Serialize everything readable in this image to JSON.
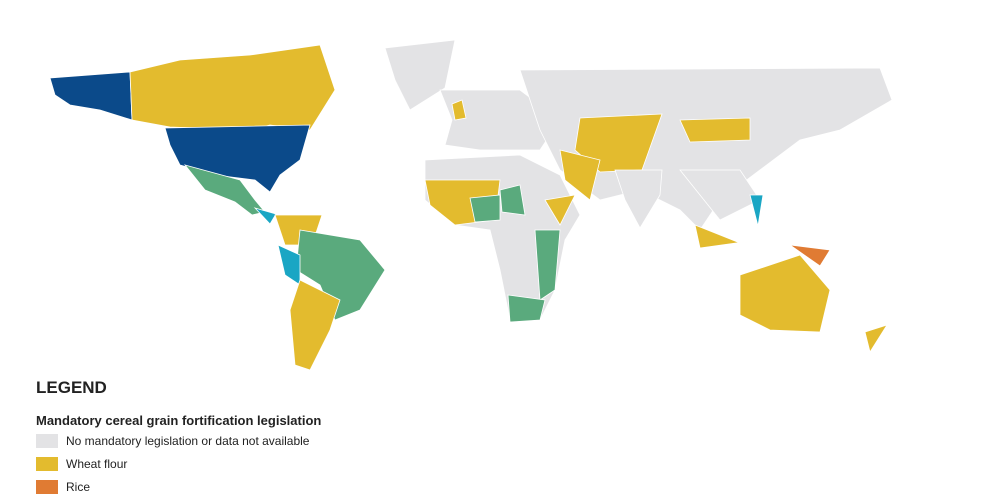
{
  "legend": {
    "heading": "LEGEND",
    "title": "Mandatory cereal grain fortification legislation",
    "items": [
      {
        "label": "No mandatory legislation or data not available",
        "color": "#e3e3e5"
      },
      {
        "label": "Wheat flour",
        "color": "#e3bb2e"
      },
      {
        "label": "Rice",
        "color": "#e07b33"
      }
    ]
  }
}
